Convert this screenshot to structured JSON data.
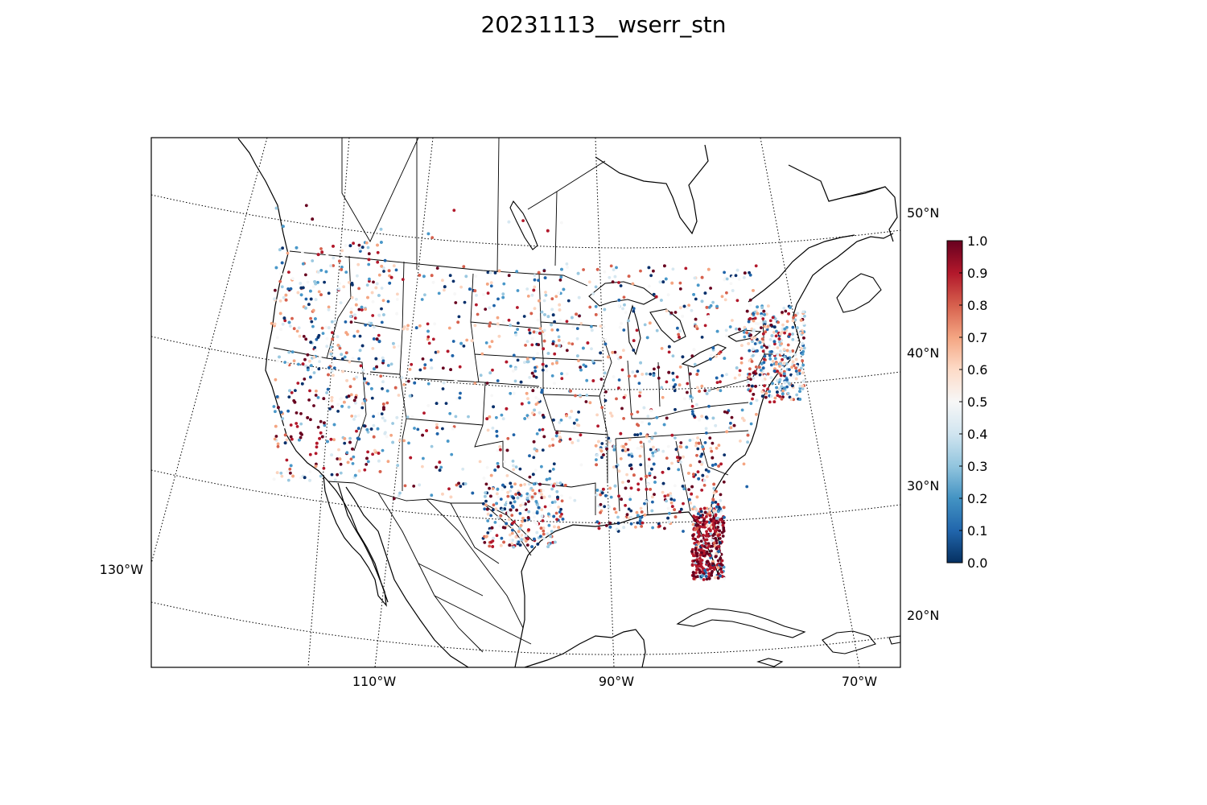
{
  "title": "20231113__wserr_stn",
  "map": {
    "lat_labels": [
      "50°N",
      "40°N",
      "30°N",
      "20°N"
    ],
    "lon_labels_bottom": [
      "110°W",
      "90°W",
      "70°W"
    ],
    "lon_label_left": "130°W",
    "colormap": "RdBu_r",
    "dot_colors": [
      "#08306b",
      "#1f63a8",
      "#4a98c9",
      "#9ac8e0",
      "#d7e8f1",
      "#f7f7f7",
      "#fbd4bf",
      "#f4a582",
      "#d6604d",
      "#b2182b",
      "#67001f"
    ]
  },
  "colorbar": {
    "ticks": [
      "1.0",
      "0.9",
      "0.8",
      "0.7",
      "0.6",
      "0.5",
      "0.4",
      "0.3",
      "0.2",
      "0.1",
      "0.0"
    ],
    "stops": [
      "#67001f",
      "#b2182b",
      "#d6604d",
      "#f4a582",
      "#fddbc7",
      "#f7f7f7",
      "#d1e5f0",
      "#92c5de",
      "#4393c3",
      "#2166ac",
      "#053061"
    ]
  }
}
